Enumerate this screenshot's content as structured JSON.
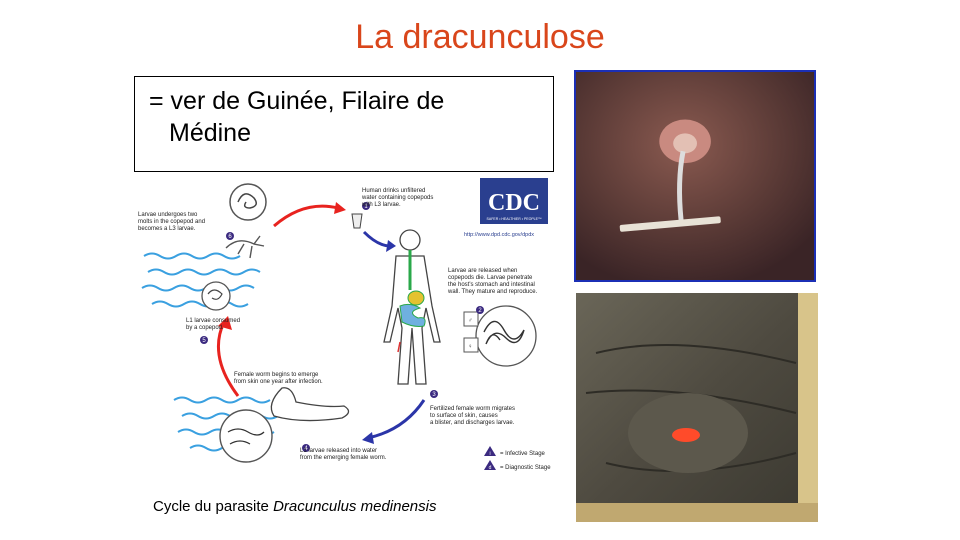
{
  "slide": {
    "title": "La dracunculose",
    "definition": {
      "line1": "= ver de Guinée, Filaire de",
      "line2": "Médine"
    },
    "caption": {
      "prefix": "Cycle du parasite ",
      "species": "Dracunculus medinensis"
    }
  },
  "lifecycle": {
    "logo": "CDC",
    "logo_tagline": "SAFER • HEALTHIER • PEOPLE™",
    "url": "http://www.dpd.cdc.gov/dpdx",
    "step1": [
      "Human drinks unfiltered",
      "water containing copepods",
      "with L3 larvae."
    ],
    "step2": [
      "Larvae are released when",
      "copepods die. Larvae penetrate",
      "the host's stomach and intestinal",
      "wall. They mature and reproduce."
    ],
    "step3": [
      "Fertilized female worm migrates",
      "to surface of skin, causes",
      "a blister, and discharges larvae."
    ],
    "step4": [
      "L1 larvae released into water",
      "from the emerging female worm."
    ],
    "step_emerge": [
      "Female worm begins to emerge",
      "from skin one year after infection."
    ],
    "step5": [
      "L1 larvae consumed",
      "by a copepod."
    ],
    "step6": [
      "Larvae undergoes two",
      "molts in the copepod and",
      "becomes a L3 larvae."
    ],
    "legend_infective": "= Infective Stage",
    "legend_diagnostic": "= Diagnostic Stage",
    "n1": "1",
    "n2": "2",
    "n3": "3",
    "n4": "4",
    "n5": "5",
    "n6": "6",
    "sym_a": "i",
    "sym_d": "d"
  },
  "colors": {
    "title": "#d9461b",
    "photo_border": "#1b2fb5",
    "arrow_red": "#e8231f",
    "arrow_blue": "#2b35a8",
    "water": "#3aa0e0",
    "step_circle": "#3b2a80"
  }
}
